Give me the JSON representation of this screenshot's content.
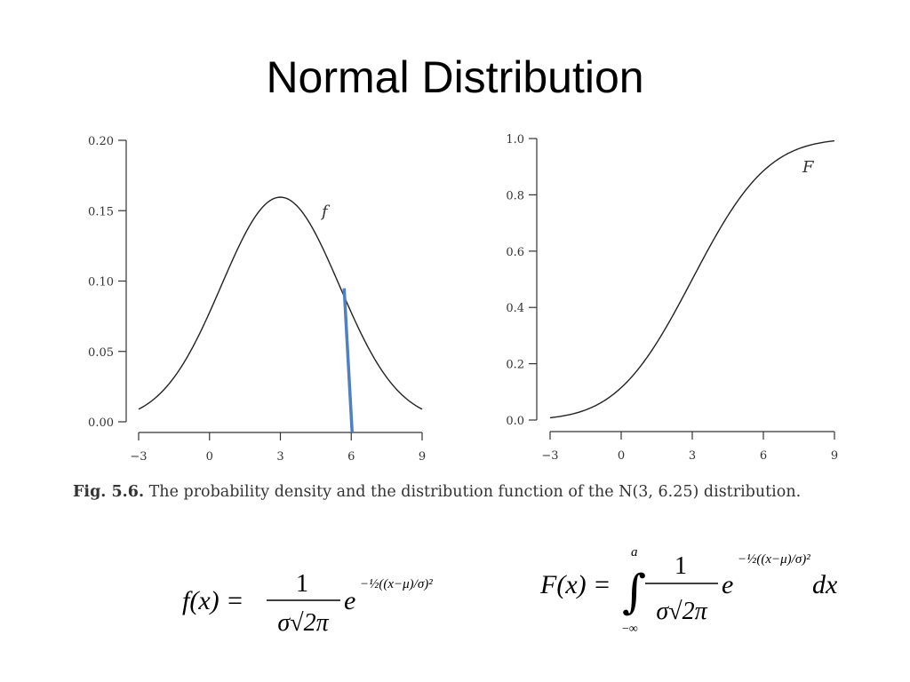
{
  "slide": {
    "title": "Normal Distribution"
  },
  "colors": {
    "curve": "#222222",
    "marker": "#4f7fc4",
    "axis": "#333333"
  },
  "chart_data": [
    {
      "type": "line",
      "name": "pdf",
      "x_ticks": [
        -3,
        0,
        3,
        6,
        9
      ],
      "x_tick_labels": [
        "−3",
        "0",
        "3",
        "6",
        "9"
      ],
      "y_ticks": [
        0.0,
        0.05,
        0.1,
        0.15,
        0.2
      ],
      "y_tick_labels": [
        "0.00",
        "0.05",
        "0.10",
        "0.15",
        "0.20"
      ],
      "xlim": [
        -3,
        9
      ],
      "ylim": [
        0,
        0.2
      ],
      "mu": 3,
      "sigma": 2.5,
      "curve_label": "f",
      "marker_x": 6,
      "grid": false
    },
    {
      "type": "line",
      "name": "cdf",
      "x_ticks": [
        -3,
        0,
        3,
        6,
        9
      ],
      "x_tick_labels": [
        "−3",
        "0",
        "3",
        "6",
        "9"
      ],
      "y_ticks": [
        0.0,
        0.2,
        0.4,
        0.6,
        0.8,
        1.0
      ],
      "y_tick_labels": [
        "0.0",
        "0.2",
        "0.4",
        "0.6",
        "0.8",
        "1.0"
      ],
      "xlim": [
        -3,
        9
      ],
      "ylim": [
        0,
        1
      ],
      "mu": 3,
      "sigma": 2.5,
      "curve_label": "F",
      "grid": false
    }
  ],
  "caption": {
    "fig_label": "Fig. 5.6.",
    "text": "The probability density and the distribution function of the N(3, 6.25) distribution."
  },
  "formulas": {
    "pdf": {
      "lhs": "f(x) =",
      "numerator": "1",
      "denominator": "σ√2π",
      "base": "e",
      "exponent": "−½((x−μ)/σ)²"
    },
    "cdf": {
      "lhs": "F(x) =",
      "integral": "∫",
      "upper": "a",
      "lower": "−∞",
      "numerator": "1",
      "denominator": "σ√2π",
      "base": "e",
      "exponent": "−½((x−μ)/σ)²",
      "differential": "dx"
    }
  }
}
